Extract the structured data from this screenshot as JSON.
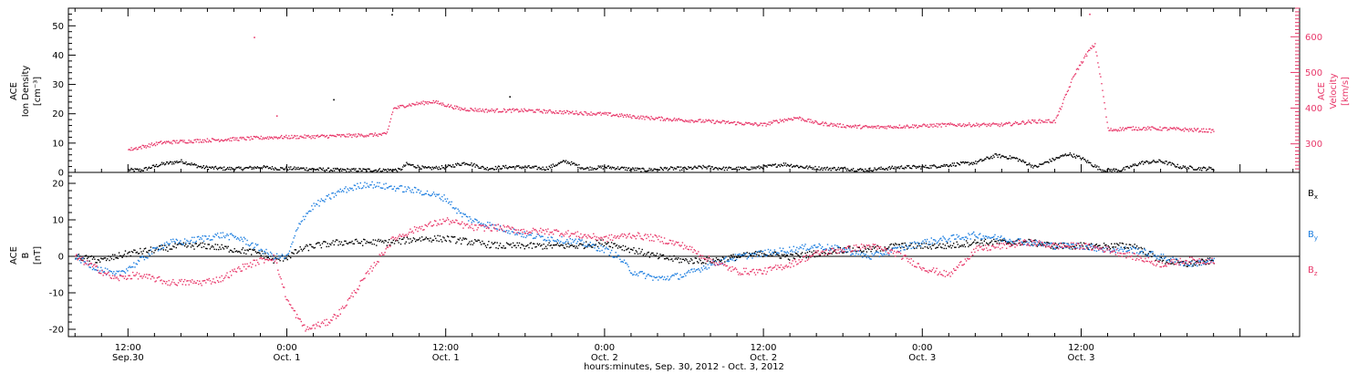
{
  "colors": {
    "black": "#000000",
    "pink": "#e8386a",
    "blue": "#1f7fe0"
  },
  "chart_data": [
    {
      "type": "scatter",
      "panel": "top",
      "ylabel_left_lines": [
        "ACE",
        "Ion Density",
        "[cm⁻³]"
      ],
      "ylabel_right_lines": [
        "ACE",
        "Velocity",
        "[km/s]"
      ],
      "ylim_left": [
        0,
        56
      ],
      "yticks_left": [
        "0",
        "10",
        "20",
        "30",
        "40",
        "50"
      ],
      "ylim_right": [
        220,
        680
      ],
      "yticks_right": [
        "300",
        "400",
        "500",
        "600"
      ],
      "series": [
        {
          "axis": "left",
          "color": "black",
          "x": [
            0.0,
            1.0,
            2.5,
            4.0,
            5.5,
            7.0,
            8.5,
            10.0,
            11.5,
            13.0,
            14.5,
            16.0,
            17.5,
            19.0,
            20.5,
            21.0,
            22.5,
            24.0,
            25.5,
            27.0,
            28.5,
            30.0,
            31.5,
            33.0,
            34.5,
            36.0,
            37.5,
            39.0,
            40.5,
            42.0,
            43.5,
            45.0,
            46.5,
            48.0,
            49.5,
            51.0,
            52.5,
            54.0,
            55.5,
            57.0,
            58.5,
            60.0,
            61.5,
            62.5,
            64.0,
            65.5,
            67.0,
            68.5,
            69.5,
            71.0,
            72.0,
            73.5,
            75.0,
            76.5,
            78.0,
            79.5,
            81.0,
            82.0
          ],
          "y": [
            1.0,
            1.0,
            3.0,
            4.0,
            2.0,
            1.5,
            1.5,
            2.0,
            1.5,
            1.5,
            1.2,
            1.0,
            1.0,
            1.0,
            1.0,
            3.0,
            1.5,
            2.0,
            3.5,
            1.5,
            2.0,
            2.0,
            1.5,
            4.0,
            1.5,
            2.0,
            1.5,
            1.0,
            1.5,
            1.5,
            2.0,
            1.5,
            1.5,
            2.0,
            3.0,
            2.0,
            1.5,
            1.5,
            1.0,
            1.5,
            2.0,
            2.0,
            2.5,
            3.0,
            3.5,
            6.0,
            5.0,
            2.0,
            4.0,
            6.5,
            5.0,
            1.0,
            1.0,
            3.5,
            4.0,
            2.0,
            1.5,
            1.5
          ]
        },
        {
          "axis": "right",
          "color": "pink",
          "x": [
            0.0,
            2.5,
            5.0,
            8.0,
            11.0,
            14.0,
            17.0,
            19.5,
            20.0,
            21.0,
            23.0,
            25.0,
            27.0,
            30.0,
            33.0,
            36.0,
            39.0,
            42.0,
            45.0,
            48.0,
            49.0,
            50.5,
            52.0,
            54.0,
            56.0,
            58.0,
            60.0,
            62.0,
            63.0,
            66.0,
            68.5,
            70.0,
            71.5,
            72.5,
            73.0,
            73.5,
            74.0,
            75.5,
            77.0,
            79.0,
            82.0
          ],
          "y": [
            285,
            305,
            310,
            315,
            320,
            322,
            325,
            328,
            400,
            410,
            420,
            400,
            395,
            395,
            390,
            385,
            375,
            368,
            362,
            355,
            365,
            375,
            360,
            352,
            348,
            350,
            352,
            355,
            355,
            355,
            365,
            365,
            500,
            560,
            580,
            470,
            340,
            345,
            345,
            343,
            338
          ]
        }
      ],
      "outliers": [
        {
          "axis": "left",
          "x": 19.9,
          "y": 54
        },
        {
          "axis": "left",
          "x": 28.8,
          "y": 26
        },
        {
          "axis": "left",
          "x": 15.5,
          "y": 25
        },
        {
          "axis": "right",
          "x": 9.5,
          "y": 600
        },
        {
          "axis": "right",
          "x": 11.2,
          "y": 380
        },
        {
          "axis": "right",
          "x": 72.6,
          "y": 665
        }
      ]
    },
    {
      "type": "scatter",
      "panel": "bottom",
      "ylabel_lines": [
        "ACE",
        "B",
        "[nT]"
      ],
      "ylim": [
        -22,
        23
      ],
      "yticks": [
        "-20",
        "-10",
        "0",
        "10",
        "20"
      ],
      "xlim": [
        -4.5,
        88.5
      ],
      "x_ticks": [
        {
          "x": 0,
          "label": "12:00",
          "label2": "Sep.30"
        },
        {
          "x": 12,
          "label": "0:00",
          "label2": "Oct. 1"
        },
        {
          "x": 24,
          "label": "12:00",
          "label2": "Oct. 1"
        },
        {
          "x": 36,
          "label": "0:00",
          "label2": "Oct. 2"
        },
        {
          "x": 48,
          "label": "12:00",
          "label2": "Oct. 2"
        },
        {
          "x": 60,
          "label": "0:00",
          "label2": "Oct. 3"
        },
        {
          "x": 72,
          "label": "12:00",
          "label2": "Oct. 3"
        }
      ],
      "xlabel": "hours:minutes, Sep. 30, 2012 - Oct.  3, 2012",
      "legend": [
        {
          "label": "B",
          "sub": "x",
          "color": "black"
        },
        {
          "label": "B",
          "sub": "y",
          "color": "blue"
        },
        {
          "label": "B",
          "sub": "z",
          "color": "pink"
        }
      ],
      "series": [
        {
          "name": "Bx",
          "color": "black",
          "x": [
            -4.0,
            -2.0,
            0.0,
            2.0,
            4.0,
            6.0,
            8.0,
            10.0,
            11.0,
            12.0,
            13.0,
            14.0,
            16.0,
            18.0,
            20.0,
            22.0,
            24.0,
            26.0,
            28.0,
            30.0,
            32.0,
            34.0,
            36.0,
            38.0,
            40.0,
            42.0,
            44.0,
            46.0,
            48.0,
            50.0,
            52.0,
            54.0,
            56.0,
            58.0,
            60.0,
            62.0,
            64.0,
            66.0,
            68.0,
            70.0,
            72.0,
            74.0,
            76.0,
            78.0,
            80.0,
            82.0
          ],
          "y": [
            0,
            -1,
            1,
            2,
            3,
            3,
            2,
            1,
            -1,
            0,
            2,
            3,
            4,
            4,
            4,
            5,
            5,
            4,
            3,
            3,
            3,
            3,
            4,
            2,
            0,
            -1,
            -1,
            0,
            1,
            0,
            1,
            2,
            2,
            3,
            3,
            3,
            4,
            4,
            4,
            3,
            3,
            3,
            3,
            -1,
            -2,
            -1
          ]
        },
        {
          "name": "By",
          "color": "blue",
          "x": [
            -4.0,
            -2.5,
            -1.0,
            0.5,
            2.0,
            3.0,
            4.0,
            5.5,
            7.0,
            8.5,
            10.0,
            11.0,
            12.0,
            13.0,
            14.0,
            15.0,
            16.0,
            18.0,
            20.0,
            22.0,
            24.0,
            25.0,
            26.0,
            28.0,
            30.0,
            32.0,
            34.0,
            36.0,
            37.0,
            38.0,
            40.0,
            42.0,
            44.0,
            46.0,
            48.0,
            50.0,
            52.0,
            54.0,
            56.0,
            58.0,
            60.0,
            62.0,
            64.0,
            66.0,
            68.0,
            70.0,
            72.0,
            74.0,
            76.0,
            78.0,
            80.0,
            82.0
          ],
          "y": [
            0,
            -3,
            -5,
            -2,
            2,
            4,
            4,
            5,
            6,
            5,
            2,
            0,
            0,
            10,
            14,
            16,
            18,
            20,
            19,
            18,
            16,
            12,
            10,
            8,
            6,
            5,
            4,
            2,
            0,
            -4,
            -6,
            -5,
            -2,
            0,
            1,
            2,
            3,
            2,
            0,
            2,
            4,
            5,
            6,
            5,
            4,
            3,
            3,
            2,
            2,
            0,
            -2,
            -1
          ]
        },
        {
          "name": "Bz",
          "color": "pink",
          "x": [
            -4.0,
            -2.5,
            -1.0,
            0.5,
            2.0,
            3.0,
            4.0,
            5.5,
            7.0,
            8.5,
            10.0,
            11.0,
            12.0,
            13.0,
            13.5,
            14.0,
            15.0,
            16.0,
            18.0,
            20.0,
            22.0,
            24.0,
            26.0,
            28.0,
            30.0,
            32.0,
            34.0,
            36.0,
            38.0,
            40.0,
            42.0,
            44.0,
            46.0,
            48.0,
            50.0,
            52.0,
            54.0,
            56.0,
            58.0,
            60.0,
            62.0,
            64.0,
            66.0,
            68.0,
            70.0,
            72.0,
            74.0,
            76.0,
            78.0,
            80.0,
            82.0
          ],
          "y": [
            0,
            -3,
            -6,
            -5,
            -6,
            -7,
            -7,
            -7,
            -6,
            -3,
            -1,
            0,
            -12,
            -18,
            -20,
            -19,
            -18,
            -15,
            -5,
            5,
            8,
            10,
            8,
            8,
            7,
            7,
            6,
            5,
            6,
            5,
            3,
            -1,
            -4,
            -4,
            -2,
            1,
            2,
            3,
            1,
            -3,
            -5,
            2,
            3,
            4,
            3,
            3,
            2,
            0,
            -2,
            -1,
            -1
          ]
        }
      ]
    }
  ]
}
